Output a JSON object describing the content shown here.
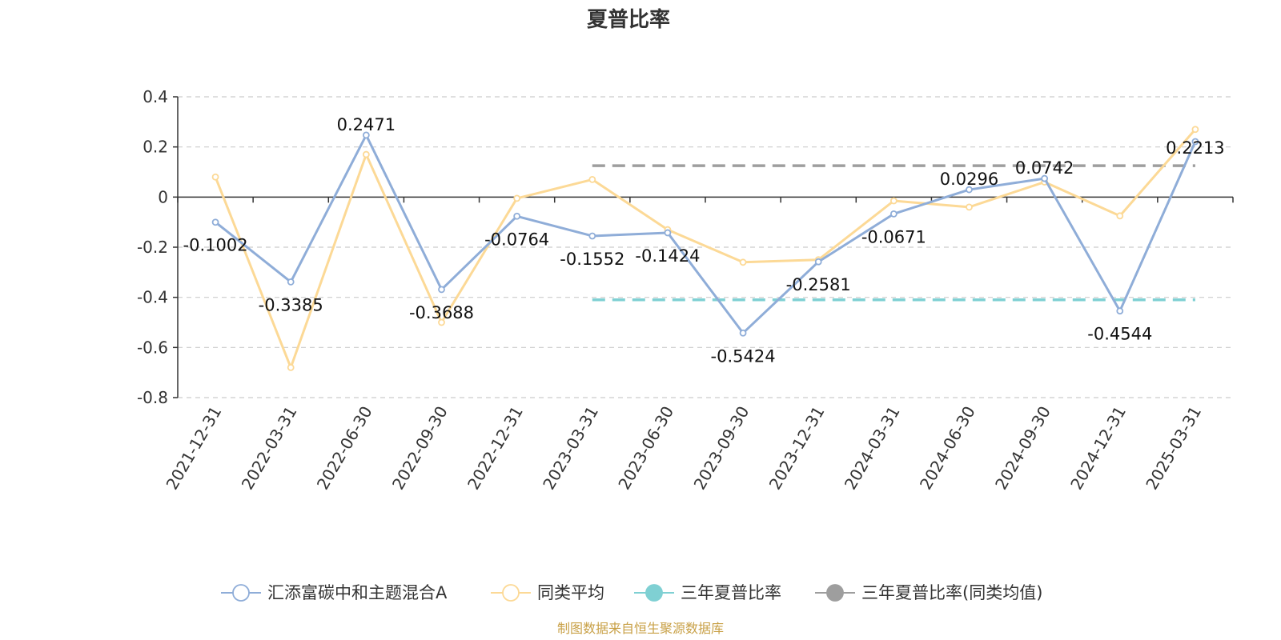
{
  "chart_data": {
    "type": "line",
    "title": "夏普比率",
    "categories": [
      "2021-12-31",
      "2022-03-31",
      "2022-06-30",
      "2022-09-30",
      "2022-12-31",
      "2023-03-31",
      "2023-06-30",
      "2023-09-30",
      "2023-12-31",
      "2024-03-31",
      "2024-06-30",
      "2024-09-30",
      "2024-12-31",
      "2025-03-31"
    ],
    "yticks": [
      "0.4",
      "0.2",
      "0",
      "-0.2",
      "-0.4",
      "-0.6",
      "-0.8"
    ],
    "ylim": [
      -0.8,
      0.4
    ],
    "grid": true,
    "legend_position": "bottom",
    "series": [
      {
        "name": "汇添富碳中和主题混合A",
        "color": "#8fadd8",
        "values": [
          -0.1002,
          -0.3385,
          0.2471,
          -0.3688,
          -0.0764,
          -0.1552,
          -0.1424,
          -0.5424,
          -0.2581,
          -0.0671,
          0.0296,
          0.0742,
          -0.4544,
          0.2213
        ],
        "labels": [
          "-0.1002",
          "-0.3385",
          "0.2471",
          "-0.3688",
          "-0.0764",
          "-0.1552",
          "-0.1424",
          "-0.5424",
          "-0.2581",
          "-0.0671",
          "0.0296",
          "0.0742",
          "-0.4544",
          "0.2213"
        ]
      },
      {
        "name": "同类平均",
        "color": "#fcd996",
        "values": [
          0.08,
          -0.68,
          0.17,
          -0.5,
          -0.005,
          0.07,
          -0.13,
          -0.26,
          -0.25,
          -0.015,
          -0.04,
          0.06,
          -0.075,
          0.27
        ]
      }
    ],
    "reference_lines": [
      {
        "name": "三年夏普比率",
        "color": "#7fd0d3",
        "value": -0.41,
        "from_category": "2023-03-31",
        "to_category": "2025-03-31"
      },
      {
        "name": "三年夏普比率(同类均值)",
        "color": "#9e9e9e",
        "value": 0.125,
        "from_category": "2023-03-31",
        "to_category": "2025-03-31"
      }
    ],
    "source": "制图数据来自恒生聚源数据库"
  }
}
